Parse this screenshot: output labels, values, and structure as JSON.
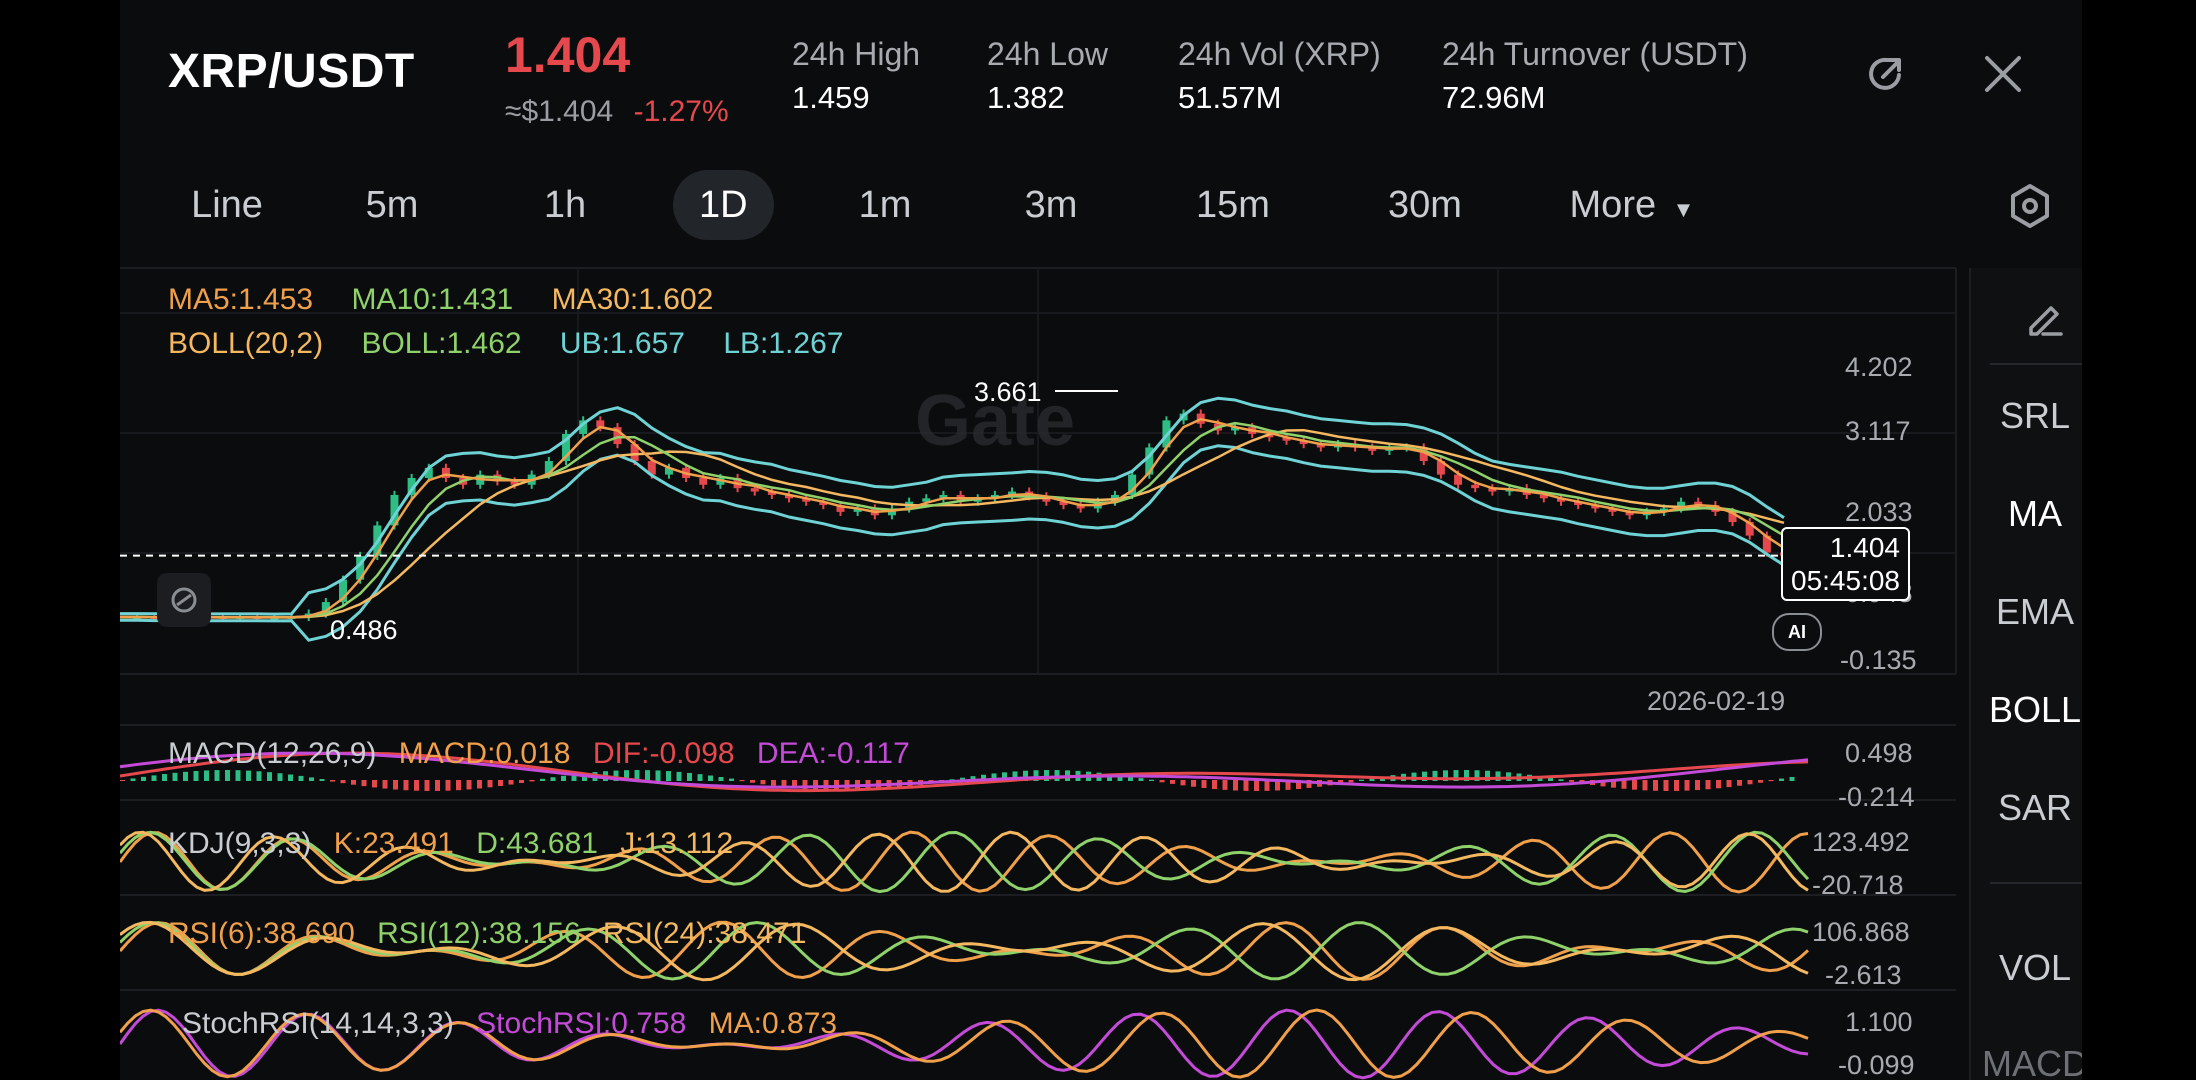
{
  "header": {
    "pair": "XRP/USDT",
    "price": "1.404",
    "fiat_price": "≈$1.404",
    "change": "-1.27%",
    "stats": [
      {
        "label": "24h   High",
        "value": "1.459"
      },
      {
        "label": "24h   Low",
        "value": "1.382"
      },
      {
        "label": "24h   Vol (XRP)",
        "value": "51.57M"
      },
      {
        "label": "24h   Turnover (USDT)",
        "value": "72.96M"
      }
    ],
    "icons": {
      "share": "share-icon",
      "close": "close-icon"
    }
  },
  "intervals": {
    "items": [
      "Line",
      "5m",
      "1h",
      "1D",
      "1m",
      "3m",
      "15m",
      "30m",
      "More"
    ],
    "active": "1D",
    "settings_icon": "hexagon-settings-icon"
  },
  "main_chart": {
    "ma_labels": [
      "MA5:1.453",
      "MA10:1.431",
      "MA30:1.602"
    ],
    "boll_labels": [
      "BOLL(20,2)",
      "BOLL:1.462",
      "UB:1.657",
      "LB:1.267"
    ],
    "y_ticks": [
      "4.202",
      "3.117",
      "2.033",
      "0.948",
      "-0.135"
    ],
    "high_marker": "3.661",
    "low_marker": "0.486",
    "current_price": "1.404",
    "countdown": "05:45:08",
    "date_label": "2026-02-19",
    "watermark": "Gate",
    "ai_badge": "AI"
  },
  "macd": {
    "labels": [
      "MACD(12,26,9)",
      "MACD:0.018",
      "DIF:-0.098",
      "DEA:-0.117"
    ],
    "y_ticks": [
      "0.498",
      "-0.214"
    ]
  },
  "kdj": {
    "labels": [
      "KDJ(9,3,3)",
      "K:23.491",
      "D:43.681",
      "J:13.112"
    ],
    "y_ticks": [
      "123.492",
      "-20.718"
    ]
  },
  "rsi": {
    "labels": [
      "RSI(6):38.690",
      "RSI(12):38.156",
      "RSI(24):38.471"
    ],
    "y_ticks": [
      "106.868",
      "-2.613"
    ]
  },
  "stochrsi": {
    "labels": [
      "StochRSI(14,14,3,3)",
      "StochRSI:0.758",
      "MA:0.873"
    ],
    "y_ticks": [
      "1.100",
      "-0.099"
    ]
  },
  "toolbar": {
    "edit_icon": "pencil-icon",
    "items": [
      "SRL",
      "MA",
      "EMA",
      "BOLL",
      "SAR",
      "VOL",
      "MACD"
    ],
    "active": [
      "MA",
      "BOLL"
    ]
  },
  "colors": {
    "down": "#e5484d",
    "ma5": "#f0a04b",
    "ma10": "#8fd16a",
    "ma30": "#f4b860",
    "boll_upper": "#6fd3d6",
    "dea": "#c44bd8",
    "kdj_d": "#8fd16a"
  },
  "chart_data": [
    {
      "type": "line",
      "title": "",
      "description_shape_only": "XRP/USDT daily candles with BOLL bands",
      "series": [
        {
          "name": "MA5",
          "last": 1.453
        },
        {
          "name": "MA10",
          "last": 1.431
        },
        {
          "name": "MA30",
          "last": 1.602
        },
        {
          "name": "BOLL",
          "last": 1.462
        },
        {
          "name": "UB",
          "last": 1.657
        },
        {
          "name": "LB",
          "last": 1.267
        }
      ],
      "ylim": [
        -0.135,
        4.202
      ],
      "path_values": [
        0.5,
        0.5,
        0.49,
        0.5,
        0.49,
        0.5,
        0.49,
        0.5,
        0.49,
        0.49,
        0.5,
        0.55,
        0.72,
        1.05,
        1.4,
        1.85,
        2.3,
        2.55,
        2.7,
        2.55,
        2.45,
        2.6,
        2.5,
        2.45,
        2.6,
        2.8,
        3.2,
        3.4,
        3.3,
        3.05,
        2.8,
        2.6,
        2.7,
        2.55,
        2.45,
        2.55,
        2.4,
        2.35,
        2.3,
        2.25,
        2.2,
        2.15,
        2.05,
        2.1,
        2.0,
        2.1,
        2.2,
        2.25,
        2.3,
        2.2,
        2.25,
        2.3,
        2.35,
        2.28,
        2.2,
        2.15,
        2.1,
        2.2,
        2.3,
        2.6,
        3.0,
        3.4,
        3.5,
        3.35,
        3.25,
        3.3,
        3.2,
        3.15,
        3.1,
        3.05,
        3.0,
        3.05,
        3.0,
        2.95,
        3.0,
        3.0,
        2.8,
        2.6,
        2.45,
        2.4,
        2.35,
        2.4,
        2.3,
        2.25,
        2.2,
        2.15,
        2.1,
        2.05,
        2.0,
        2.05,
        2.1,
        2.2,
        2.15,
        2.05,
        1.9,
        1.7,
        1.45,
        1.404
      ]
    }
  ]
}
